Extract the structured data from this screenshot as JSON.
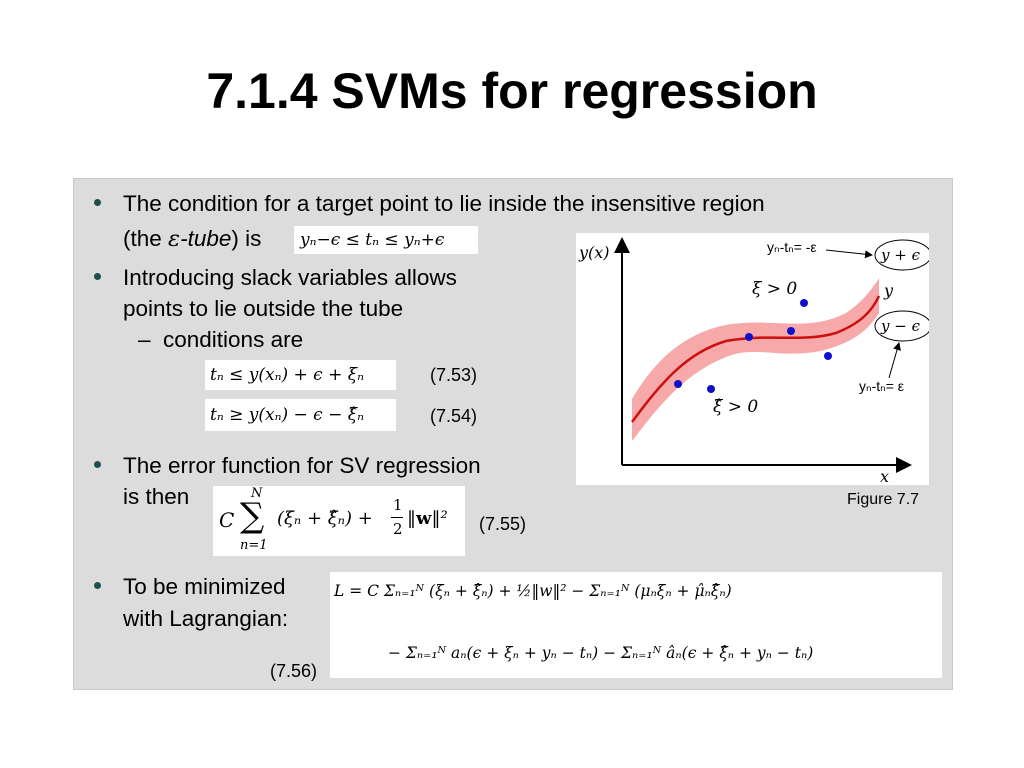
{
  "title": "7.1.4 SVMs for regression",
  "bullets": [
    {
      "line1": "The condition for a target point to lie inside the insensitive region",
      "line2_pre": "(the ",
      "line2_eps": "ε",
      "line2_italic": "-tube",
      "line2_post": ") is",
      "math": "yₙ−ϵ ≤ tₙ ≤ yₙ+ϵ"
    },
    {
      "line1": "Introducing slack variables allows",
      "line2": "points to lie outside the tube",
      "sub": "conditions are"
    },
    {
      "line1": "The error function for SV regression",
      "line2": "is then"
    },
    {
      "line1": "To be minimized",
      "line2": "with Lagrangian:"
    }
  ],
  "sub_dash": "–",
  "equations": {
    "eq_7_53": {
      "math": "tₙ ≤ y(xₙ) + ϵ + ξₙ",
      "label": "(7.53)"
    },
    "eq_7_54": {
      "math": "tₙ ≥ y(xₙ) − ϵ − ξ̂ₙ",
      "label": "(7.54)"
    },
    "eq_7_55": {
      "label": "(7.55)"
    },
    "eq_7_56": {
      "line1": "L =   C Σₙ₌₁ᴺ (ξₙ + ξ̂ₙ) + ½‖w‖² − Σₙ₌₁ᴺ (μₙξₙ + μ̂ₙξ̂ₙ)",
      "line2": "− Σₙ₌₁ᴺ aₙ(ϵ + ξₙ + yₙ − tₙ) − Σₙ₌₁ᴺ âₙ(ϵ + ξ̂ₙ + yₙ − tₙ)",
      "label": "(7.56)"
    }
  },
  "figure": {
    "caption": "Figure 7.7",
    "y_axis_label": "y(x)",
    "x_axis_label": "x",
    "curve_label": "y",
    "upper_label": "y + ϵ",
    "lower_label": "y − ϵ",
    "upper_annot": "yₙ-tₙ= -ε",
    "lower_annot": "yₙ-tₙ= ε",
    "xi_label": "ξ > 0",
    "xihat_label": "ξ̂ > 0",
    "colors": {
      "curve": "#cc1010",
      "tube": "#f7a8a8",
      "points": "#1010cc"
    }
  }
}
